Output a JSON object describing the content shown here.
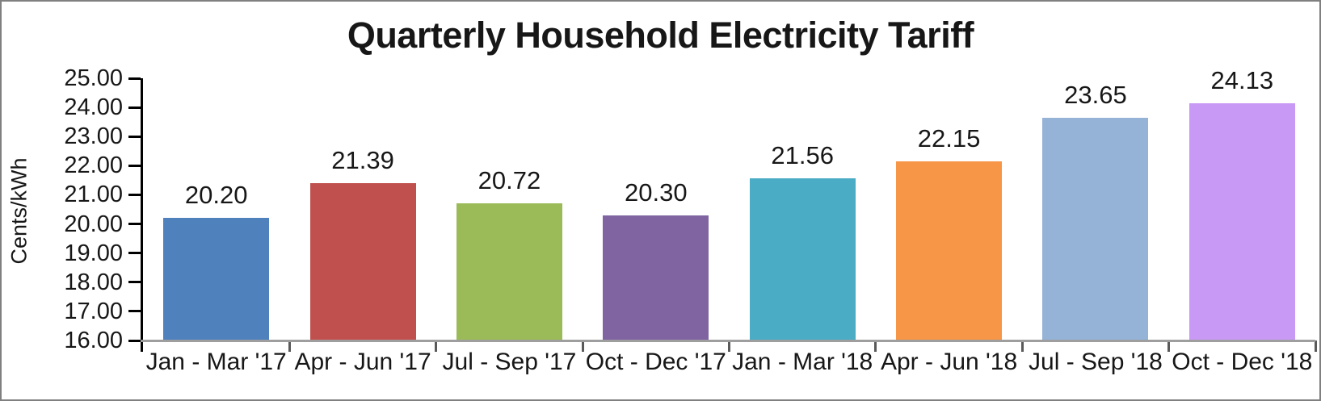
{
  "chart": {
    "title": "Quarterly Household Electricity Tariff",
    "ylabel": "Cents/kWh"
  },
  "chart_data": {
    "type": "bar",
    "title": "Quarterly Household Electricity Tariff",
    "xlabel": "",
    "ylabel": "Cents/kWh",
    "categories": [
      "Jan - Mar '17",
      "Apr - Jun '17",
      "Jul - Sep '17",
      "Oct - Dec '17",
      "Jan - Mar '18",
      "Apr - Jun '18",
      "Jul - Sep '18",
      "Oct - Dec '18"
    ],
    "values": [
      20.2,
      21.39,
      20.72,
      20.3,
      21.56,
      22.15,
      23.65,
      24.13
    ],
    "data_labels": [
      "20.20",
      "21.39",
      "20.72",
      "20.30",
      "21.56",
      "22.15",
      "23.65",
      "24.13"
    ],
    "bar_colors": [
      "#4F81BD",
      "#C0504D",
      "#9BBB59",
      "#8064A2",
      "#4BACC6",
      "#F79646",
      "#95B3D7",
      "#C99AF5"
    ],
    "ylim": [
      16,
      25
    ],
    "ytick_step": 1,
    "ytick_labels": [
      "25.00",
      "24.00",
      "23.00",
      "22.00",
      "21.00",
      "20.00",
      "19.00",
      "18.00",
      "17.00",
      "16.00"
    ],
    "grid": false,
    "legend": "none",
    "axis_color": "#000000",
    "baseline_color": "#9E9E9E",
    "xtick_color": "#595959"
  }
}
